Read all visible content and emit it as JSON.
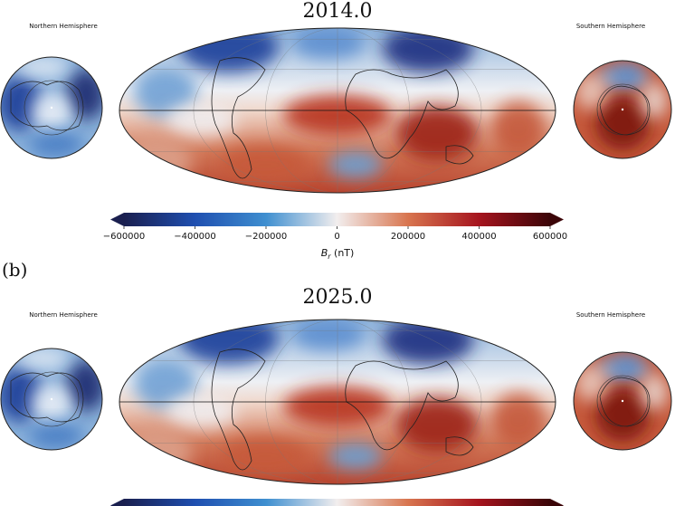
{
  "panels": [
    {
      "title": "2014.0",
      "north_label": "Northern Hemisphere",
      "south_label": "Southern Hemisphere"
    },
    {
      "title": "2025.0",
      "north_label": "Northern Hemisphere",
      "south_label": "Southern Hemisphere"
    }
  ],
  "panel_b_label": "(b)",
  "colorbar": {
    "ticks": [
      "−600000",
      "−400000",
      "−200000",
      "0",
      "200000",
      "400000",
      "600000"
    ],
    "range": [
      -600000,
      600000
    ],
    "label_main": "B",
    "label_sub": "r",
    "label_unit": " (nT)",
    "colormap": [
      "#1a1f4f",
      "#1f4fb0",
      "#3f8fd0",
      "#f2eeee",
      "#d8754f",
      "#a5141e",
      "#3b0508"
    ]
  },
  "quantity": "Br radial magnetic field"
}
